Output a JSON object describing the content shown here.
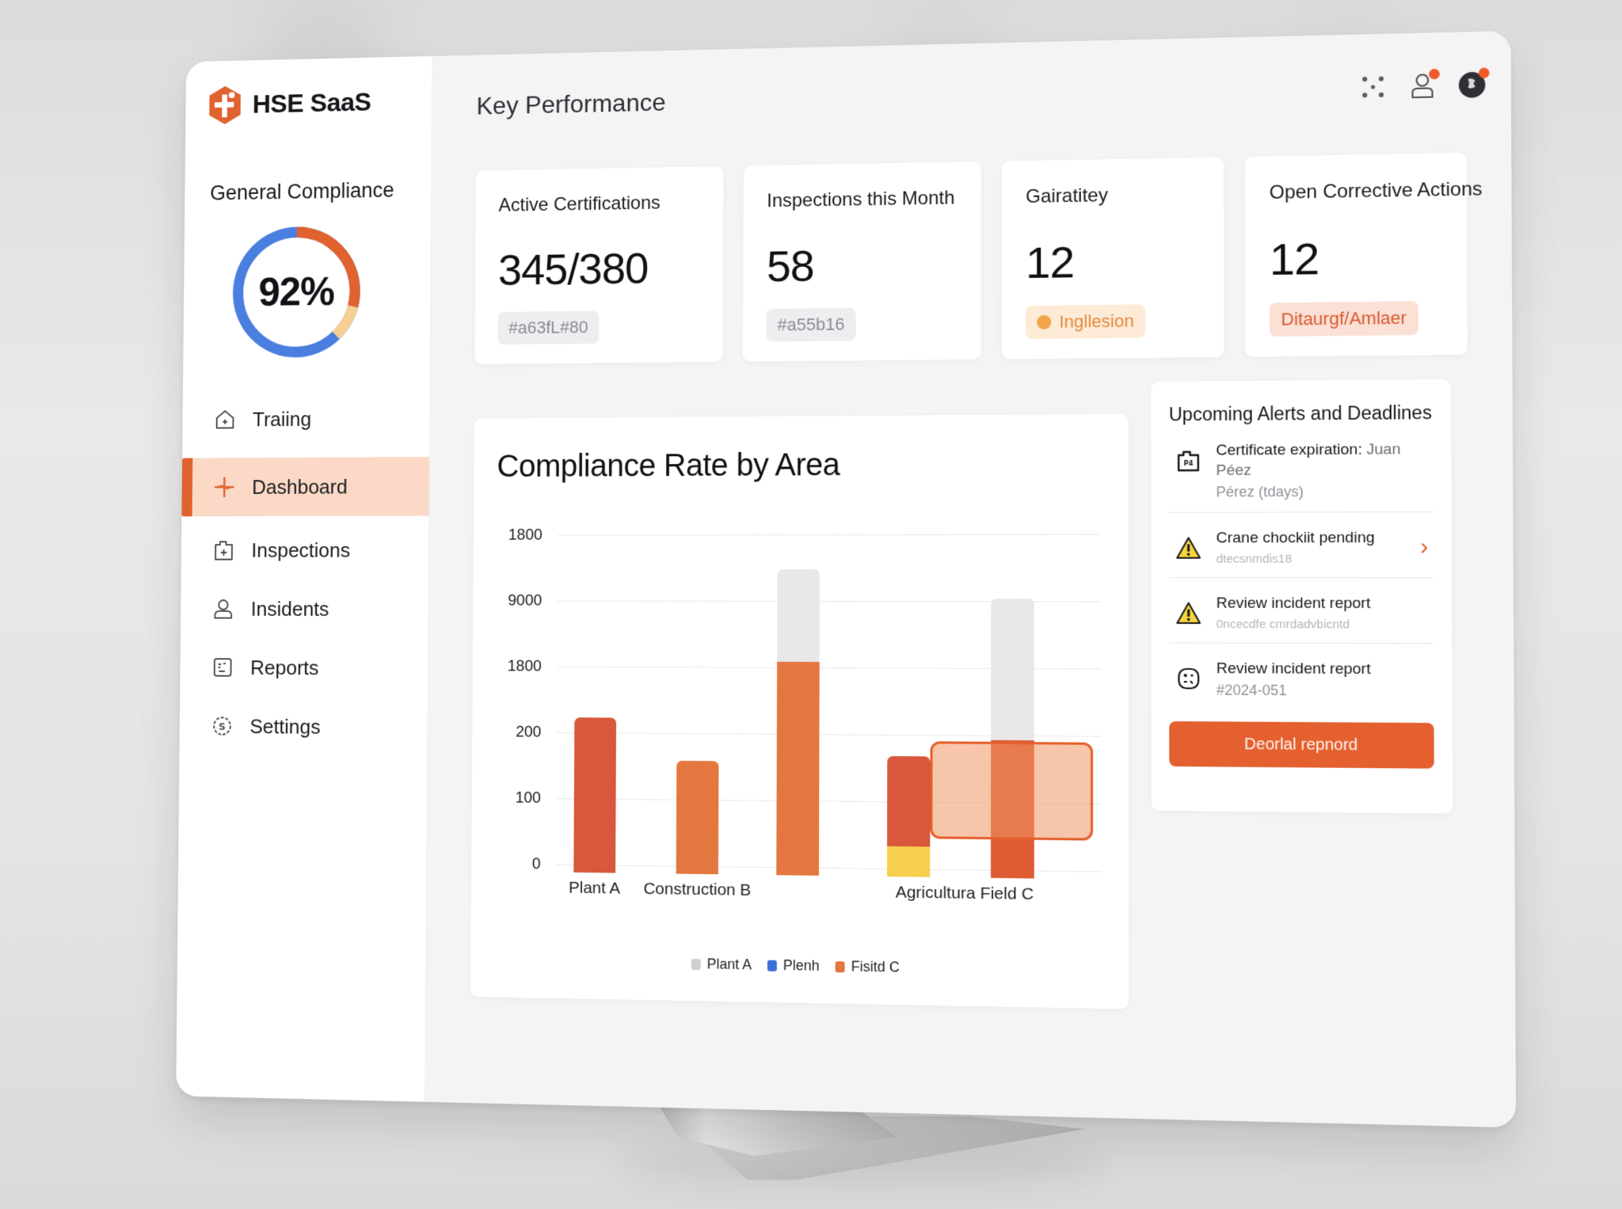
{
  "app": {
    "name": "HSE SaaS",
    "logo_icon": "medical-cross-hexagon-icon"
  },
  "sidebar": {
    "compliance": {
      "title": "General Compliance",
      "value": "92%",
      "segments": [
        {
          "name": "compliant",
          "color": "#4a7fe0",
          "portion": 0.62
        },
        {
          "name": "in-progress",
          "color": "#e0622f",
          "portion": 0.29
        },
        {
          "name": "pending",
          "color": "#f6cf94",
          "portion": 0.09
        }
      ]
    },
    "items": [
      {
        "label": "Traiing",
        "icon": "house-plus-icon",
        "active": false
      },
      {
        "label": "Dashboard",
        "icon": "crosshair-icon",
        "active": true
      },
      {
        "label": "Inspections",
        "icon": "clipboard-plus-icon",
        "active": false
      },
      {
        "label": "Insidents",
        "icon": "user-icon",
        "active": false
      },
      {
        "label": "Reports",
        "icon": "report-icon",
        "active": false
      },
      {
        "label": "Settings",
        "icon": "gear-icon",
        "active": false
      }
    ],
    "active_color": "#e0622f",
    "active_bg": "#fbd9c6"
  },
  "header": {
    "title": "Key Performance",
    "icons": [
      {
        "name": "apps-grid-icon",
        "has_badge": false
      },
      {
        "name": "user-profile-icon",
        "has_badge": true
      },
      {
        "name": "avatar",
        "has_badge": true
      }
    ]
  },
  "kpis": [
    {
      "label": "Active Certifications",
      "value": "345/380",
      "badge": "#a63fL#80",
      "badge_style": "gray"
    },
    {
      "label": "Inspections this Month",
      "value": "58",
      "badge": "#a55b16",
      "badge_style": "gray"
    },
    {
      "label": "Gairatitey",
      "value": "12",
      "badge": "Ingllesion",
      "badge_style": "amber"
    },
    {
      "label": "Open Corrective Actions",
      "value": "12",
      "badge": "Ditaurgf/Amlaer",
      "badge_style": "red"
    }
  ],
  "chart_data": {
    "type": "bar",
    "title": "Compliance Rate by Area",
    "xlabel": "",
    "ylabel": "",
    "y_tick_labels": [
      "0",
      "100",
      "200",
      "1800",
      "9000",
      "1800"
    ],
    "grid": true,
    "legend_position": "bottom",
    "categories": [
      "Plant A",
      "Construction B",
      "",
      "Agricultura Field C",
      ""
    ],
    "series": [
      {
        "name": "Plant A",
        "color": "#e8e8e9",
        "values": [
          0,
          0,
          1.4,
          0,
          2.1
        ]
      },
      {
        "name": "Plenh",
        "color": "#3d6fd8",
        "values": [
          0,
          0,
          0,
          0,
          0
        ]
      },
      {
        "name": "Fisitd C",
        "color": "#e4773f",
        "values": [
          2.35,
          1.7,
          3.2,
          1.35,
          2.05
        ]
      },
      {
        "name": "Yellow segment",
        "color": "#f7cf4f",
        "values": [
          0,
          0,
          0,
          0.45,
          0
        ]
      }
    ],
    "tick_positions": [
      0,
      1,
      2,
      3,
      4,
      5
    ],
    "ylim": [
      0,
      5
    ],
    "highlight": {
      "from_index": 3,
      "to_index": 4,
      "y_range": [
        0.45,
        1.9
      ],
      "color": "#f19564"
    },
    "legend": [
      {
        "label": "Plant A",
        "color": "#cfd0d3"
      },
      {
        "label": "Plenh",
        "color": "#3d6fd8"
      },
      {
        "label": "Fisitd C",
        "color": "#e4773f"
      }
    ]
  },
  "alerts": {
    "title": "Upcoming Alerts and Deadlines",
    "items": [
      {
        "icon": "certificate-icon",
        "title": "Certificate expiration:",
        "title_muted": " Juan Péez",
        "sub": "Pérez (tdays)",
        "sub_style": "normal",
        "chevron": false
      },
      {
        "icon": "warning-icon",
        "title": "Crane chockiit pending",
        "title_muted": "",
        "sub": "dtecsnmdis18",
        "sub_style": "faint",
        "chevron": true
      },
      {
        "icon": "warning-icon",
        "title": "Review incident report",
        "title_muted": "",
        "sub": "0ncecdfe cmrdadvbicntd",
        "sub_style": "faint",
        "chevron": false
      },
      {
        "icon": "incident-report-icon",
        "title": "Review incident report",
        "title_muted": "",
        "sub": "#2024-051",
        "sub_style": "normal",
        "chevron": false
      }
    ],
    "button_label": "Deorlal repnord"
  }
}
